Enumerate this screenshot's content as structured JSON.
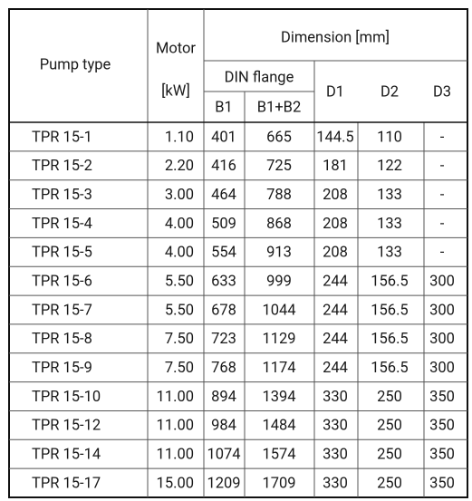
{
  "header": {
    "pump_type": "Pump type",
    "motor": "Motor",
    "motor_unit": "[kW]",
    "dimension": "Dimension [mm]",
    "din_flange": "DIN flange",
    "columns": [
      "B1",
      "B1+B2",
      "D1",
      "D2",
      "D3"
    ]
  },
  "table": {
    "rows": [
      [
        "TPR 15-1",
        "1.10",
        "401",
        "665",
        "144.5",
        "110",
        "-"
      ],
      [
        "TPR 15-2",
        "2.20",
        "416",
        "725",
        "181",
        "122",
        "-"
      ],
      [
        "TPR 15-3",
        "3.00",
        "464",
        "788",
        "208",
        "133",
        "-"
      ],
      [
        "TPR 15-4",
        "4.00",
        "509",
        "868",
        "208",
        "133",
        "-"
      ],
      [
        "TPR 15-5",
        "4.00",
        "554",
        "913",
        "208",
        "133",
        "-"
      ],
      [
        "TPR 15-6",
        "5.50",
        "633",
        "999",
        "244",
        "156.5",
        "300"
      ],
      [
        "TPR 15-7",
        "5.50",
        "678",
        "1044",
        "244",
        "156.5",
        "300"
      ],
      [
        "TPR 15-8",
        "7.50",
        "723",
        "1129",
        "244",
        "156.5",
        "300"
      ],
      [
        "TPR 15-9",
        "7.50",
        "768",
        "1174",
        "244",
        "156.5",
        "300"
      ],
      [
        "TPR 15-10",
        "11.00",
        "894",
        "1394",
        "330",
        "250",
        "350"
      ],
      [
        "TPR 15-12",
        "11.00",
        "984",
        "1484",
        "330",
        "250",
        "350"
      ],
      [
        "TPR 15-14",
        "11.00",
        "1074",
        "1574",
        "330",
        "250",
        "350"
      ],
      [
        "TPR 15-17",
        "15.00",
        "1209",
        "1709",
        "330",
        "250",
        "350"
      ]
    ]
  }
}
